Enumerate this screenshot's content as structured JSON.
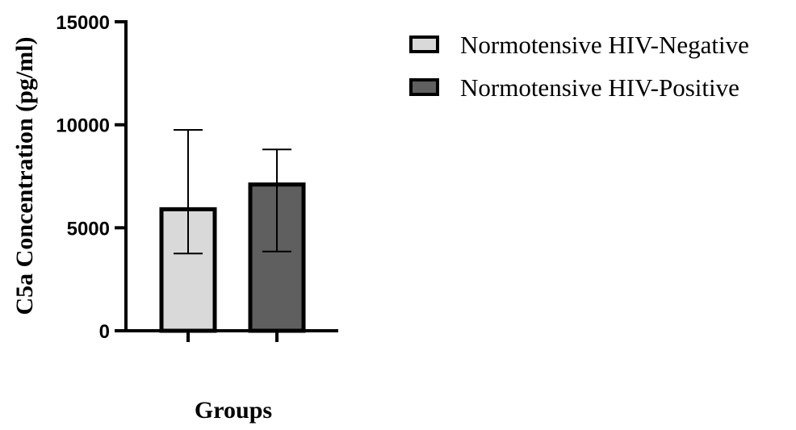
{
  "chart_data": {
    "type": "bar",
    "categories": [
      "Normotensive HIV-Negative",
      "Normotensive HIV-Positive"
    ],
    "values": [
      5900,
      7100
    ],
    "error_upper": [
      9750,
      8800
    ],
    "error_lower": [
      3750,
      3850
    ],
    "xlabel": "Groups",
    "ylabel": "C5a Concentration (pg/ml)",
    "ylim": [
      0,
      15000
    ],
    "yticks": [
      0,
      5000,
      10000,
      15000
    ],
    "grid": false,
    "legend": {
      "position": "top-right",
      "entries": [
        {
          "label": "Normotensive HIV-Negative",
          "color": "#d9d9d9"
        },
        {
          "label": "Normotensive HIV-Positive",
          "color": "#5f5f5f"
        }
      ]
    },
    "colors": [
      "#d9d9d9",
      "#5f5f5f"
    ],
    "outline_color": "#000000"
  }
}
